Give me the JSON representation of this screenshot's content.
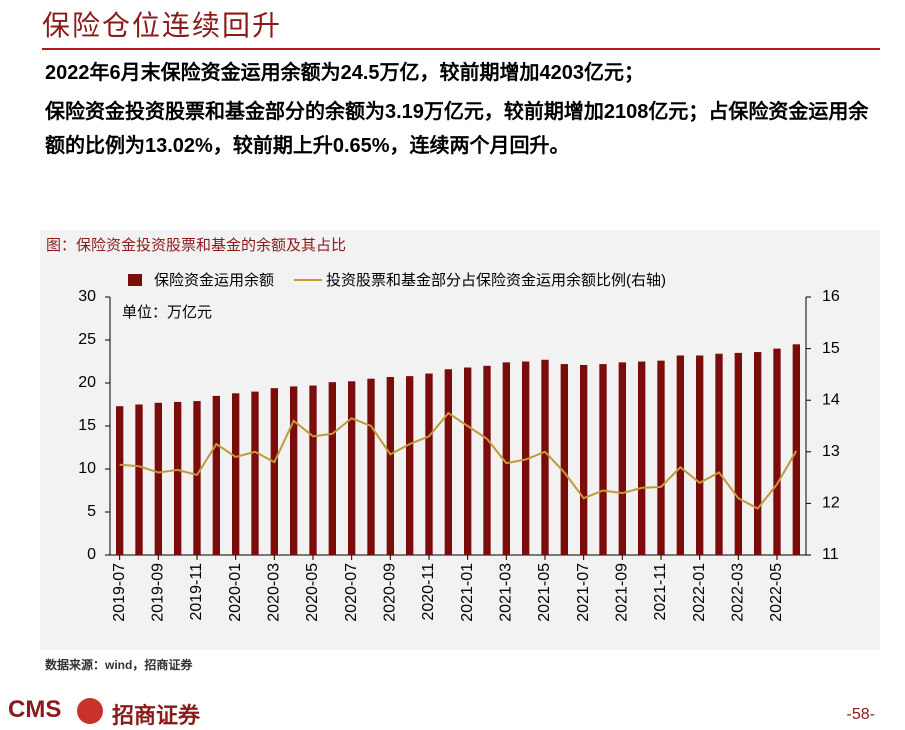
{
  "header": {
    "title": "保险仓位连续回升"
  },
  "body": {
    "lines": [
      "2022年6月末保险资金运用余额为24.5万亿，较前期增加4203亿元；",
      "保险资金投资股票和基金部分的余额为3.19万亿元，较前期增加2108亿元；占保险资金运用余额的比例为13.02%，较前期上升0.65%，连续两个月回升。"
    ]
  },
  "chart_data": {
    "type": "bar",
    "title": "图：保险资金投资股票和基金的余额及其占比",
    "annotation": "单位：万亿元",
    "categories": [
      "2019-07",
      null,
      "2019-09",
      null,
      "2019-11",
      null,
      "2020-01",
      null,
      "2020-03",
      null,
      "2020-05",
      null,
      "2020-07",
      null,
      "2020-09",
      null,
      "2020-11",
      null,
      "2021-01",
      null,
      "2021-03",
      null,
      "2021-05",
      null,
      "2021-07",
      null,
      "2021-09",
      null,
      "2021-11",
      null,
      "2022-01",
      null,
      "2022-03",
      null,
      "2022-05",
      null
    ],
    "series": [
      {
        "name": "保险资金运用余额",
        "color": "#7b0c0c",
        "type": "bar",
        "values": [
          17.3,
          17.5,
          17.7,
          17.8,
          17.9,
          18.5,
          18.8,
          19.0,
          19.4,
          19.6,
          19.7,
          20.1,
          20.2,
          20.5,
          20.7,
          20.8,
          21.1,
          21.6,
          21.8,
          22.0,
          22.4,
          22.5,
          22.7,
          22.2,
          22.1,
          22.2,
          22.4,
          22.5,
          22.6,
          23.2,
          23.2,
          23.4,
          23.5,
          23.6,
          24.0,
          24.5
        ]
      },
      {
        "name": "投资股票和基金部分占保险资金运用余额比例(右轴)",
        "color": "#c09a3c",
        "type": "line",
        "axis": "y2",
        "values": [
          12.75,
          12.72,
          12.6,
          12.65,
          12.55,
          13.15,
          12.9,
          13.0,
          12.8,
          13.6,
          13.3,
          13.35,
          13.65,
          13.5,
          12.95,
          13.15,
          13.3,
          13.75,
          13.5,
          13.25,
          12.78,
          12.85,
          13.0,
          12.6,
          12.1,
          12.25,
          12.2,
          12.3,
          12.32,
          12.7,
          12.4,
          12.6,
          12.1,
          11.9,
          12.37,
          13.02
        ]
      }
    ],
    "ylim": [
      0,
      30
    ],
    "yticks": [
      0,
      5,
      10,
      15,
      20,
      25,
      30
    ],
    "y2lim": [
      11,
      16
    ],
    "y2ticks": [
      11,
      12,
      13,
      14,
      15,
      16
    ]
  },
  "source": "数据来源：wind，招商证券",
  "footer": {
    "logo": "CMS",
    "brand": "招商证券",
    "page": "-58-"
  }
}
